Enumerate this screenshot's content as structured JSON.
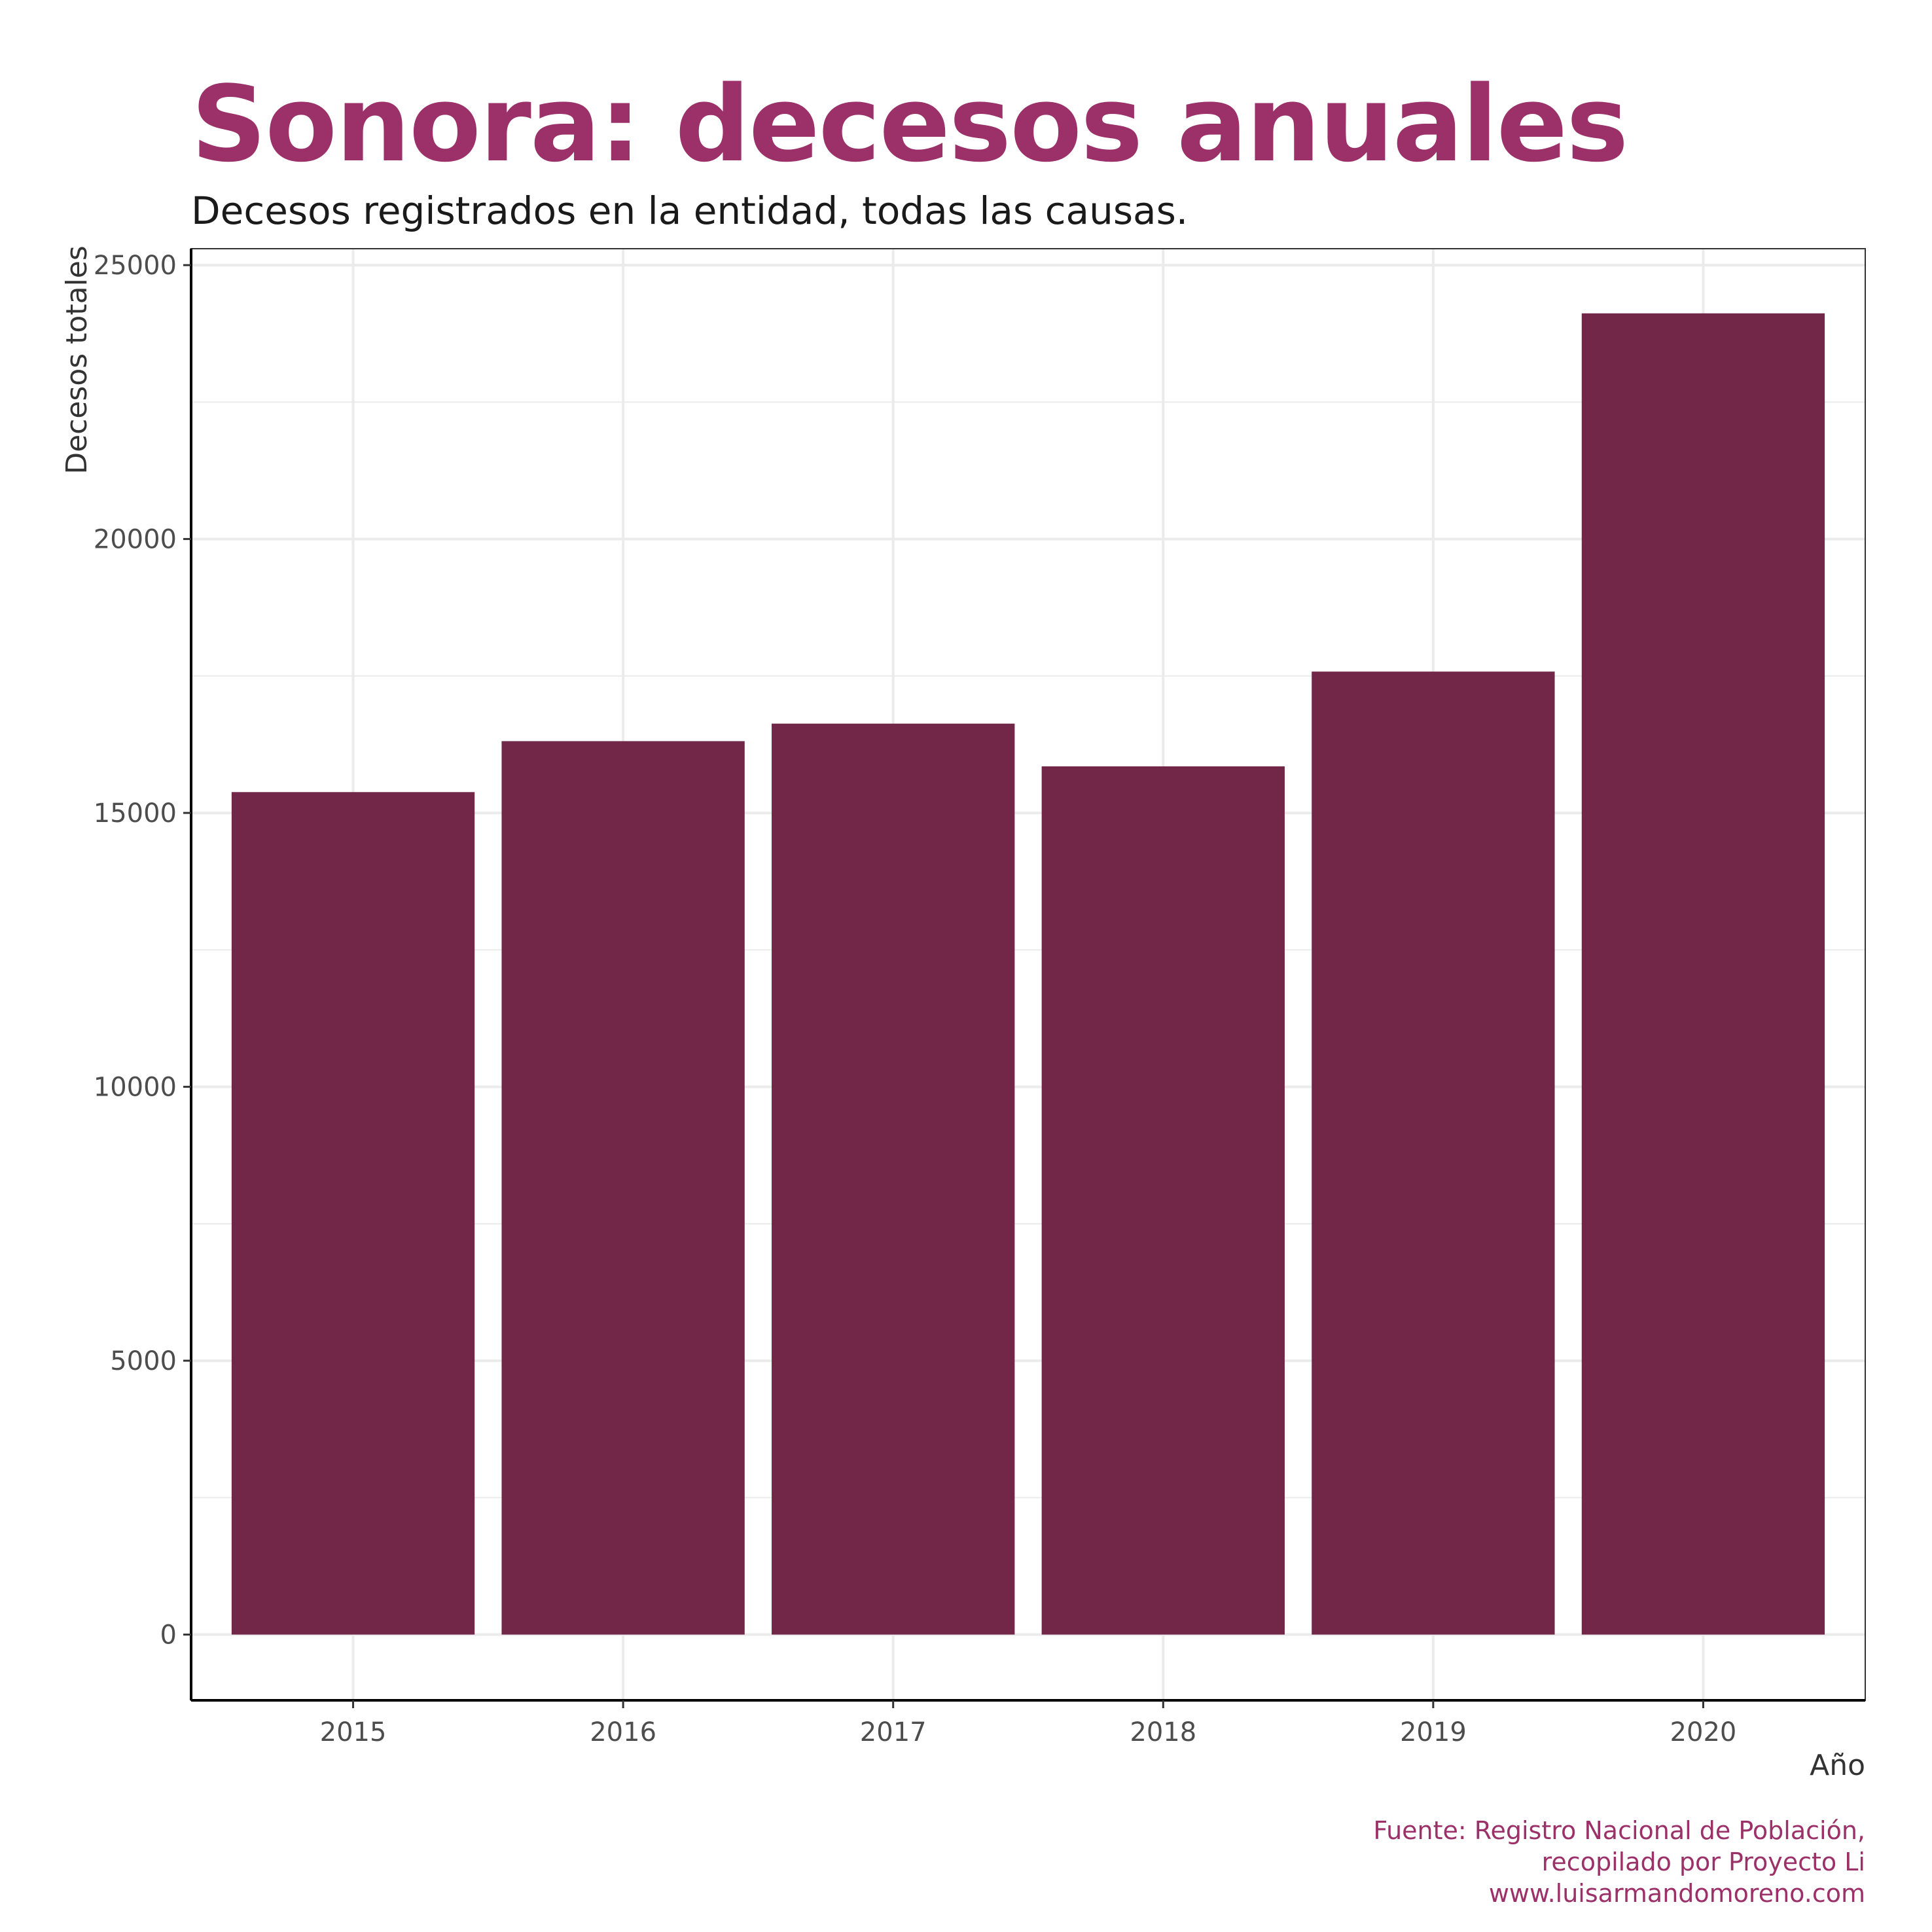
{
  "chart_data": {
    "type": "bar",
    "title": "Sonora: decesos anuales",
    "subtitle": "Decesos registrados en la entidad, todas las causas.",
    "xlabel": "Año",
    "ylabel": "Decesos totales",
    "categories": [
      "2015",
      "2016",
      "2017",
      "2018",
      "2019",
      "2020"
    ],
    "values": [
      15380,
      16310,
      16630,
      15850,
      17580,
      24120
    ],
    "ylim": [
      -1200,
      25300
    ],
    "yticks": [
      0,
      5000,
      10000,
      15000,
      20000,
      25000
    ],
    "ytick_labels": [
      "0",
      "5000",
      "10000",
      "15000",
      "20000",
      "25000"
    ],
    "grid": true,
    "bar_color": "#722749",
    "caption": [
      "Fuente: Registro Nacional de Población,",
      "recopilado por Proyecto Li",
      "www.luisarmandomoreno.com"
    ]
  },
  "colors": {
    "title": "#9b3168",
    "caption": "#9b3168",
    "grid": "#ebebeb",
    "axis": "#000000"
  }
}
